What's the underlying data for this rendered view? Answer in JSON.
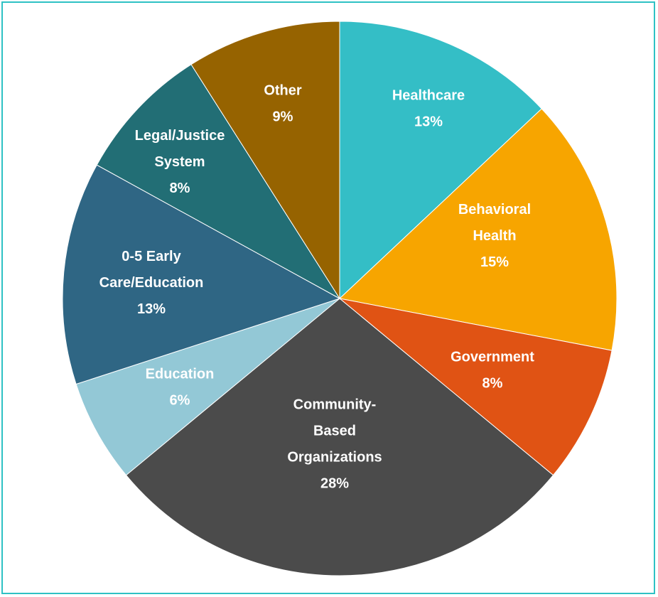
{
  "chart_data": {
    "type": "pie",
    "title": "",
    "start_angle_deg": 0,
    "direction": "clockwise",
    "slices": [
      {
        "label_lines": [
          "Healthcare"
        ],
        "value": 13,
        "value_label": "13%",
        "color": "#34bec6"
      },
      {
        "label_lines": [
          "Behavioral",
          "Health"
        ],
        "value": 15,
        "value_label": "15%",
        "color": "#f7a500"
      },
      {
        "label_lines": [
          "Government"
        ],
        "value": 8,
        "value_label": "8%",
        "color": "#e05314"
      },
      {
        "label_lines": [
          "Community-",
          "Based",
          "Organizations"
        ],
        "value": 28,
        "value_label": "28%",
        "color": "#4b4b4b"
      },
      {
        "label_lines": [
          "Education"
        ],
        "value": 6,
        "value_label": "6%",
        "color": "#93c8d6"
      },
      {
        "label_lines": [
          "0-5 Early",
          "Care/Education"
        ],
        "value": 13,
        "value_label": "13%",
        "color": "#2f6684"
      },
      {
        "label_lines": [
          "Legal/Justice",
          "System"
        ],
        "value": 8,
        "value_label": "8%",
        "color": "#226e75"
      },
      {
        "label_lines": [
          "Other"
        ],
        "value": 9,
        "value_label": "9%",
        "color": "#966300"
      }
    ]
  }
}
